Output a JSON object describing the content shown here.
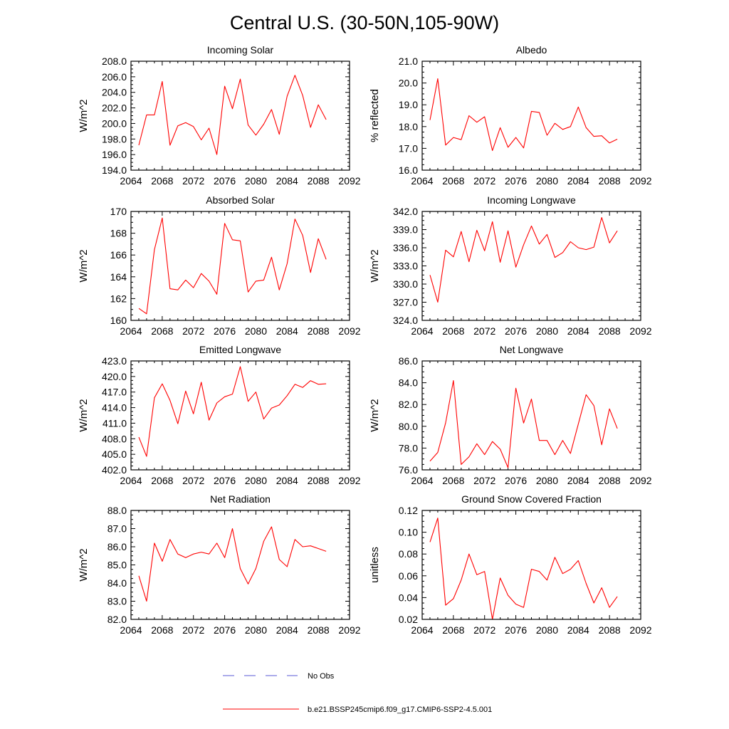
{
  "figure": {
    "title": "Central U.S. (30-50N,105-90W)",
    "series_color": "#ff0000",
    "obs_color": "#5a5ad6"
  },
  "legend": {
    "obs_label": "No Obs",
    "model_label": "b.e21.BSSP245cmip6.f09_g17.CMIP6-SSP2-4.5.001"
  },
  "chart_data": [
    {
      "type": "line",
      "title": "Incoming Solar",
      "xlabel": "",
      "ylabel": "W/m^2",
      "xlim": [
        2064,
        2092
      ],
      "ylim": [
        194,
        208
      ],
      "xticks": [
        2064,
        2068,
        2072,
        2076,
        2080,
        2084,
        2088,
        2092
      ],
      "xtick_labels": [
        "2064",
        "2068",
        "2072",
        "2076",
        "2080",
        "2084",
        "2088",
        "2092"
      ],
      "yticks": [
        194,
        196,
        198,
        200,
        202,
        204,
        206,
        208
      ],
      "ytick_labels": [
        "194.0",
        "196.0",
        "198.0",
        "200.0",
        "202.0",
        "204.0",
        "206.0",
        "208.0"
      ],
      "x": [
        2065,
        2066,
        2067,
        2068,
        2069,
        2070,
        2071,
        2072,
        2073,
        2074,
        2075,
        2076,
        2077,
        2078,
        2079,
        2080,
        2081,
        2082,
        2083,
        2084,
        2085,
        2086,
        2087,
        2088,
        2089
      ],
      "series": [
        {
          "name": "b.e21.BSSP245cmip6.f09_g17.CMIP6-SSP2-4.5.001",
          "values": [
            197.2,
            201.1,
            201.1,
            205.4,
            197.2,
            199.7,
            200.1,
            199.6,
            197.9,
            199.4,
            196.0,
            204.8,
            201.9,
            205.7,
            199.8,
            198.5,
            199.9,
            201.8,
            198.6,
            203.5,
            206.2,
            203.6,
            199.5,
            202.4,
            200.5
          ]
        }
      ]
    },
    {
      "type": "line",
      "title": "Albedo",
      "xlabel": "",
      "ylabel": "% reflected",
      "xlim": [
        2064,
        2092
      ],
      "ylim": [
        16,
        21
      ],
      "xticks": [
        2064,
        2068,
        2072,
        2076,
        2080,
        2084,
        2088,
        2092
      ],
      "xtick_labels": [
        "2064",
        "2068",
        "2072",
        "2076",
        "2080",
        "2084",
        "2088",
        "2092"
      ],
      "yticks": [
        16,
        17,
        18,
        19,
        20,
        21
      ],
      "ytick_labels": [
        "16.0",
        "17.0",
        "18.0",
        "19.0",
        "20.0",
        "21.0"
      ],
      "x": [
        2065,
        2066,
        2067,
        2068,
        2069,
        2070,
        2071,
        2072,
        2073,
        2074,
        2075,
        2076,
        2077,
        2078,
        2079,
        2080,
        2081,
        2082,
        2083,
        2084,
        2085,
        2086,
        2087,
        2088,
        2089
      ],
      "series": [
        {
          "name": "b.e21.BSSP245cmip6.f09_g17.CMIP6-SSP2-4.5.001",
          "values": [
            18.3,
            20.2,
            17.15,
            17.5,
            17.4,
            18.5,
            18.2,
            18.45,
            16.9,
            17.95,
            17.05,
            17.5,
            17.02,
            18.7,
            18.65,
            17.6,
            18.15,
            17.87,
            18.0,
            18.9,
            17.95,
            17.55,
            17.58,
            17.25,
            17.42
          ]
        }
      ]
    },
    {
      "type": "line",
      "title": "Absorbed Solar",
      "xlabel": "",
      "ylabel": "W/m^2",
      "xlim": [
        2064,
        2092
      ],
      "ylim": [
        160,
        170
      ],
      "xticks": [
        2064,
        2068,
        2072,
        2076,
        2080,
        2084,
        2088,
        2092
      ],
      "xtick_labels": [
        "2064",
        "2068",
        "2072",
        "2076",
        "2080",
        "2084",
        "2088",
        "2092"
      ],
      "yticks": [
        160,
        162,
        164,
        166,
        168,
        170
      ],
      "ytick_labels": [
        "160",
        "162",
        "164",
        "166",
        "168",
        "170"
      ],
      "x": [
        2065,
        2066,
        2067,
        2068,
        2069,
        2070,
        2071,
        2072,
        2073,
        2074,
        2075,
        2076,
        2077,
        2078,
        2079,
        2080,
        2081,
        2082,
        2083,
        2084,
        2085,
        2086,
        2087,
        2088,
        2089
      ],
      "series": [
        {
          "name": "b.e21.BSSP245cmip6.f09_g17.CMIP6-SSP2-4.5.001",
          "values": [
            161.1,
            160.6,
            166.5,
            169.4,
            162.9,
            162.8,
            163.7,
            163.0,
            164.3,
            163.6,
            162.4,
            168.9,
            167.4,
            167.3,
            162.6,
            163.6,
            163.7,
            165.8,
            162.8,
            165.2,
            169.3,
            167.8,
            164.4,
            167.5,
            165.6
          ]
        }
      ]
    },
    {
      "type": "line",
      "title": "Incoming Longwave",
      "xlabel": "",
      "ylabel": "W/m^2",
      "xlim": [
        2064,
        2092
      ],
      "ylim": [
        324,
        342
      ],
      "xticks": [
        2064,
        2068,
        2072,
        2076,
        2080,
        2084,
        2088,
        2092
      ],
      "xtick_labels": [
        "2064",
        "2068",
        "2072",
        "2076",
        "2080",
        "2084",
        "2088",
        "2092"
      ],
      "yticks": [
        324,
        327,
        330,
        333,
        336,
        339,
        342
      ],
      "ytick_labels": [
        "324.0",
        "327.0",
        "330.0",
        "333.0",
        "336.0",
        "339.0",
        "342.0"
      ],
      "x": [
        2065,
        2066,
        2067,
        2068,
        2069,
        2070,
        2071,
        2072,
        2073,
        2074,
        2075,
        2076,
        2077,
        2078,
        2079,
        2080,
        2081,
        2082,
        2083,
        2084,
        2085,
        2086,
        2087,
        2088,
        2089
      ],
      "series": [
        {
          "name": "b.e21.BSSP245cmip6.f09_g17.CMIP6-SSP2-4.5.001",
          "values": [
            331.5,
            327.0,
            335.6,
            334.5,
            338.7,
            333.7,
            338.9,
            335.5,
            340.3,
            333.6,
            338.8,
            332.8,
            336.5,
            339.6,
            336.6,
            338.2,
            334.4,
            335.2,
            337.0,
            336.0,
            335.7,
            336.1,
            341.0,
            336.8,
            338.8
          ]
        }
      ]
    },
    {
      "type": "line",
      "title": "Emitted Longwave",
      "xlabel": "",
      "ylabel": "W/m^2",
      "xlim": [
        2064,
        2092
      ],
      "ylim": [
        402,
        423
      ],
      "xticks": [
        2064,
        2068,
        2072,
        2076,
        2080,
        2084,
        2088,
        2092
      ],
      "xtick_labels": [
        "2064",
        "2068",
        "2072",
        "2076",
        "2080",
        "2084",
        "2088",
        "2092"
      ],
      "yticks": [
        402,
        405,
        408,
        411,
        414,
        417,
        420,
        423
      ],
      "ytick_labels": [
        "402.0",
        "405.0",
        "408.0",
        "411.0",
        "414.0",
        "417.0",
        "420.0",
        "423.0"
      ],
      "x": [
        2065,
        2066,
        2067,
        2068,
        2069,
        2070,
        2071,
        2072,
        2073,
        2074,
        2075,
        2076,
        2077,
        2078,
        2079,
        2080,
        2081,
        2082,
        2083,
        2084,
        2085,
        2086,
        2087,
        2088,
        2089
      ],
      "series": [
        {
          "name": "b.e21.BSSP245cmip6.f09_g17.CMIP6-SSP2-4.5.001",
          "values": [
            408.3,
            404.6,
            415.9,
            418.6,
            415.4,
            410.9,
            417.2,
            412.8,
            418.9,
            411.6,
            414.9,
            416.1,
            416.6,
            421.9,
            415.2,
            417.0,
            411.8,
            413.9,
            414.5,
            416.3,
            418.5,
            417.9,
            419.2,
            418.5,
            418.6
          ]
        }
      ]
    },
    {
      "type": "line",
      "title": "Net Longwave",
      "xlabel": "",
      "ylabel": "W/m^2",
      "xlim": [
        2064,
        2092
      ],
      "ylim": [
        76,
        86
      ],
      "xticks": [
        2064,
        2068,
        2072,
        2076,
        2080,
        2084,
        2088,
        2092
      ],
      "xtick_labels": [
        "2064",
        "2068",
        "2072",
        "2076",
        "2080",
        "2084",
        "2088",
        "2092"
      ],
      "yticks": [
        76,
        78,
        80,
        82,
        84,
        86
      ],
      "ytick_labels": [
        "76.0",
        "78.0",
        "80.0",
        "82.0",
        "84.0",
        "86.0"
      ],
      "x": [
        2065,
        2066,
        2067,
        2068,
        2069,
        2070,
        2071,
        2072,
        2073,
        2074,
        2075,
        2076,
        2077,
        2078,
        2079,
        2080,
        2081,
        2082,
        2083,
        2084,
        2085,
        2086,
        2087,
        2088,
        2089
      ],
      "series": [
        {
          "name": "b.e21.BSSP245cmip6.f09_g17.CMIP6-SSP2-4.5.001",
          "values": [
            76.8,
            77.6,
            80.3,
            84.2,
            76.5,
            77.2,
            78.4,
            77.4,
            78.6,
            77.9,
            76.2,
            83.5,
            80.3,
            82.5,
            78.7,
            78.7,
            77.4,
            78.7,
            77.5,
            80.2,
            82.9,
            81.9,
            78.3,
            81.6,
            79.8
          ]
        }
      ]
    },
    {
      "type": "line",
      "title": "Net Radiation",
      "xlabel": "",
      "ylabel": "W/m^2",
      "xlim": [
        2064,
        2092
      ],
      "ylim": [
        82,
        88
      ],
      "xticks": [
        2064,
        2068,
        2072,
        2076,
        2080,
        2084,
        2088,
        2092
      ],
      "xtick_labels": [
        "2064",
        "2068",
        "2072",
        "2076",
        "2080",
        "2084",
        "2088",
        "2092"
      ],
      "yticks": [
        82,
        83,
        84,
        85,
        86,
        87,
        88
      ],
      "ytick_labels": [
        "82.0",
        "83.0",
        "84.0",
        "85.0",
        "86.0",
        "87.0",
        "88.0"
      ],
      "x": [
        2065,
        2066,
        2067,
        2068,
        2069,
        2070,
        2071,
        2072,
        2073,
        2074,
        2075,
        2076,
        2077,
        2078,
        2079,
        2080,
        2081,
        2082,
        2083,
        2084,
        2085,
        2086,
        2087,
        2088,
        2089
      ],
      "series": [
        {
          "name": "b.e21.BSSP245cmip6.f09_g17.CMIP6-SSP2-4.5.001",
          "values": [
            84.4,
            83.0,
            86.2,
            85.2,
            86.4,
            85.6,
            85.4,
            85.6,
            85.7,
            85.6,
            86.2,
            85.4,
            87.0,
            84.8,
            83.95,
            84.8,
            86.3,
            87.1,
            85.3,
            84.9,
            86.4,
            86.0,
            86.05,
            85.9,
            85.75
          ]
        }
      ]
    },
    {
      "type": "line",
      "title": "Ground Snow Covered Fraction",
      "xlabel": "",
      "ylabel": "unitless",
      "xlim": [
        2064,
        2092
      ],
      "ylim": [
        0.02,
        0.12
      ],
      "xticks": [
        2064,
        2068,
        2072,
        2076,
        2080,
        2084,
        2088,
        2092
      ],
      "xtick_labels": [
        "2064",
        "2068",
        "2072",
        "2076",
        "2080",
        "2084",
        "2088",
        "2092"
      ],
      "yticks": [
        0.02,
        0.04,
        0.06,
        0.08,
        0.1,
        0.12
      ],
      "ytick_labels": [
        "0.02",
        "0.04",
        "0.06",
        "0.08",
        "0.10",
        "0.12"
      ],
      "x": [
        2065,
        2066,
        2067,
        2068,
        2069,
        2070,
        2071,
        2072,
        2073,
        2074,
        2075,
        2076,
        2077,
        2078,
        2079,
        2080,
        2081,
        2082,
        2083,
        2084,
        2085,
        2086,
        2087,
        2088,
        2089
      ],
      "series": [
        {
          "name": "b.e21.BSSP245cmip6.f09_g17.CMIP6-SSP2-4.5.001",
          "values": [
            0.091,
            0.113,
            0.033,
            0.039,
            0.056,
            0.08,
            0.061,
            0.064,
            0.02,
            0.058,
            0.042,
            0.034,
            0.031,
            0.066,
            0.064,
            0.056,
            0.077,
            0.062,
            0.066,
            0.074,
            0.053,
            0.035,
            0.049,
            0.031,
            0.041
          ]
        }
      ]
    }
  ]
}
